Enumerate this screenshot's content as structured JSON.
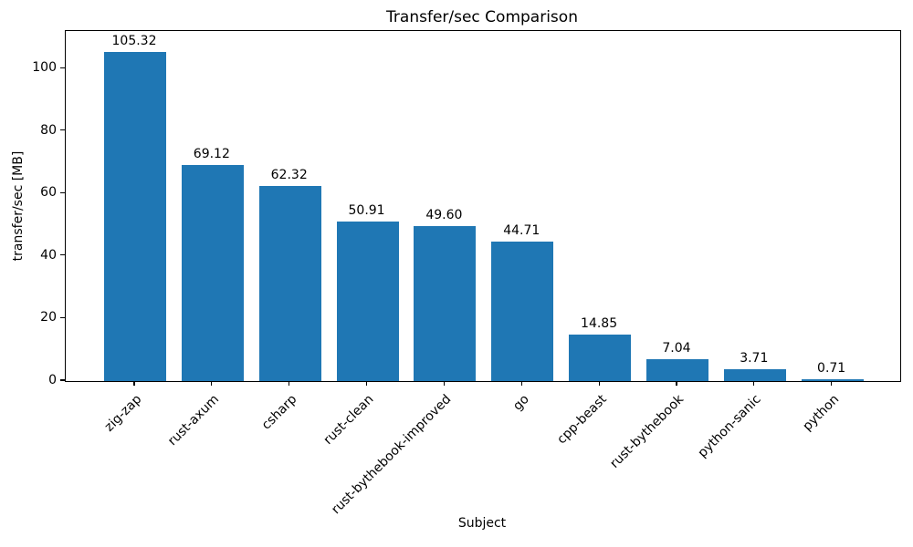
{
  "chart_data": {
    "type": "bar",
    "title": "Transfer/sec Comparison",
    "xlabel": "Subject",
    "ylabel": "transfer/sec [MB]",
    "categories": [
      "zig-zap",
      "rust-axum",
      "csharp",
      "rust-clean",
      "rust-bythebook-improved",
      "go",
      "cpp-beast",
      "rust-bythebook",
      "python-sanic",
      "python"
    ],
    "values": [
      105.32,
      69.12,
      62.32,
      50.91,
      49.6,
      44.71,
      14.85,
      7.04,
      3.71,
      0.71
    ],
    "value_labels": [
      "105.32",
      "69.12",
      "62.32",
      "50.91",
      "49.60",
      "44.71",
      "14.85",
      "7.04",
      "3.71",
      "0.71"
    ],
    "yticks": [
      0,
      20,
      40,
      60,
      80,
      100
    ],
    "ylim": [
      0,
      112
    ],
    "bar_color": "#1f77b4",
    "text_color": "#000000",
    "grid": false,
    "legend": null
  }
}
